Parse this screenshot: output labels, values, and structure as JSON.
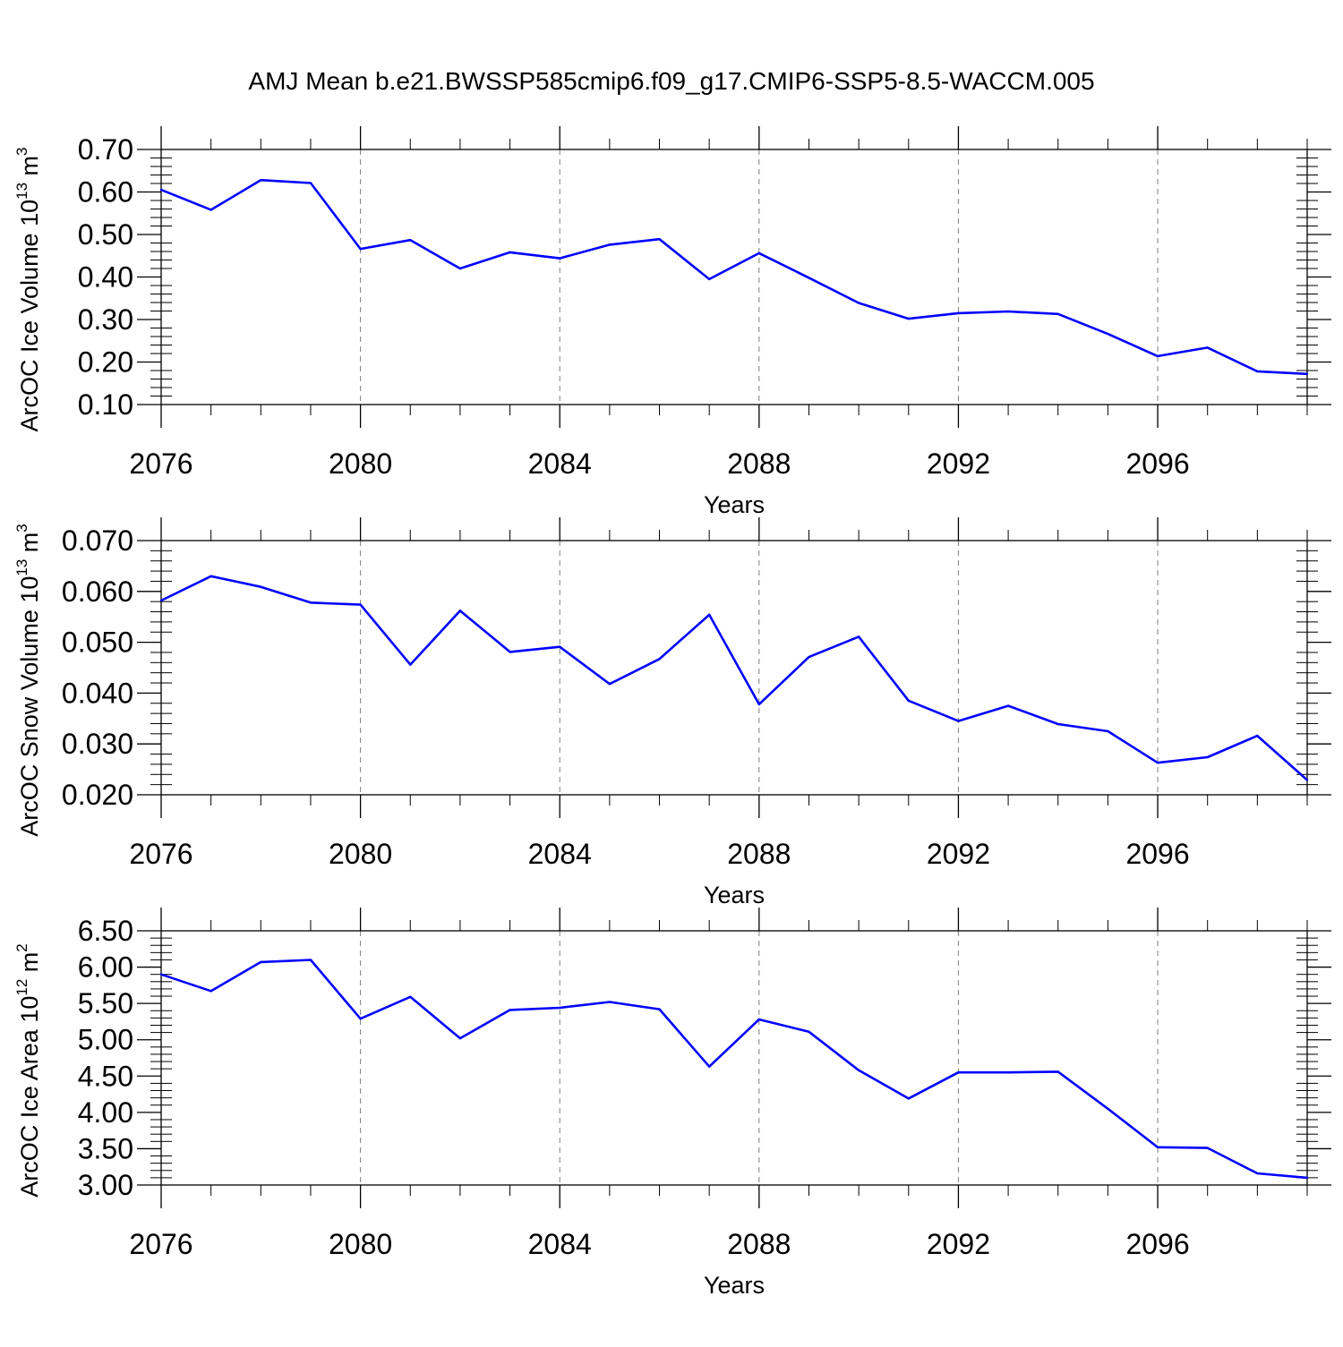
{
  "title": "AMJ Mean b.e21.BWSSP585cmip6.f09_g17.CMIP6-SSP5-8.5-WACCM.005",
  "colors": {
    "line": "#0000ff",
    "axis": "#000000",
    "grid": "#7f7f7f"
  },
  "chart_data": [
    {
      "type": "line",
      "ylabel": "ArcOC Ice Volume 10",
      "ylabel_exp": "13",
      "ylabel_unit": " m",
      "ylabel_unit_exp": "3",
      "xlabel": "Years",
      "xlim": [
        2076,
        2099
      ],
      "ylim": [
        0.1,
        0.7
      ],
      "yticks": [
        0.1,
        0.2,
        0.3,
        0.4,
        0.5,
        0.6,
        0.7
      ],
      "ytick_labels": [
        "0.10",
        "0.20",
        "0.30",
        "0.40",
        "0.50",
        "0.60",
        "0.70"
      ],
      "xticks": [
        2076,
        2080,
        2084,
        2088,
        2092,
        2096
      ],
      "xtick_labels": [
        "2076",
        "2080",
        "2084",
        "2088",
        "2092",
        "2096"
      ],
      "grid": "vertical dashed at major x ticks",
      "x": [
        2076,
        2077,
        2078,
        2079,
        2080,
        2081,
        2082,
        2083,
        2084,
        2085,
        2086,
        2087,
        2088,
        2089,
        2090,
        2091,
        2092,
        2093,
        2094,
        2095,
        2096,
        2097,
        2098,
        2099
      ],
      "values": [
        0.605,
        0.558,
        0.628,
        0.621,
        0.466,
        0.487,
        0.42,
        0.458,
        0.444,
        0.476,
        0.489,
        0.395,
        0.456,
        0.398,
        0.339,
        0.302,
        0.315,
        0.319,
        0.313,
        0.266,
        0.214,
        0.234,
        0.178,
        0.172
      ]
    },
    {
      "type": "line",
      "ylabel": "ArcOC Snow Volume 10",
      "ylabel_exp": "13",
      "ylabel_unit": " m",
      "ylabel_unit_exp": "3",
      "xlabel": "Years",
      "xlim": [
        2076,
        2099
      ],
      "ylim": [
        0.02,
        0.07
      ],
      "yticks": [
        0.02,
        0.03,
        0.04,
        0.05,
        0.06,
        0.07
      ],
      "ytick_labels": [
        "0.020",
        "0.030",
        "0.040",
        "0.050",
        "0.060",
        "0.070"
      ],
      "xticks": [
        2076,
        2080,
        2084,
        2088,
        2092,
        2096
      ],
      "xtick_labels": [
        "2076",
        "2080",
        "2084",
        "2088",
        "2092",
        "2096"
      ],
      "grid": "vertical dashed at major x ticks",
      "x": [
        2076,
        2077,
        2078,
        2079,
        2080,
        2081,
        2082,
        2083,
        2084,
        2085,
        2086,
        2087,
        2088,
        2089,
        2090,
        2091,
        2092,
        2093,
        2094,
        2095,
        2096,
        2097,
        2098,
        2099
      ],
      "values": [
        0.0582,
        0.063,
        0.0609,
        0.0578,
        0.0574,
        0.0456,
        0.0562,
        0.0481,
        0.0491,
        0.0418,
        0.0467,
        0.0554,
        0.0378,
        0.0471,
        0.0511,
        0.0385,
        0.0345,
        0.0375,
        0.0339,
        0.0325,
        0.0263,
        0.0274,
        0.0316,
        0.0229
      ]
    },
    {
      "type": "line",
      "ylabel": "ArcOC Ice Area 10",
      "ylabel_exp": "12",
      "ylabel_unit": " m",
      "ylabel_unit_exp": "2",
      "xlabel": "Years",
      "xlim": [
        2076,
        2099
      ],
      "ylim": [
        3.0,
        6.5
      ],
      "yticks": [
        3.0,
        3.5,
        4.0,
        4.5,
        5.0,
        5.5,
        6.0,
        6.5
      ],
      "ytick_labels": [
        "3.00",
        "3.50",
        "4.00",
        "4.50",
        "5.00",
        "5.50",
        "6.00",
        "6.50"
      ],
      "xticks": [
        2076,
        2080,
        2084,
        2088,
        2092,
        2096
      ],
      "xtick_labels": [
        "2076",
        "2080",
        "2084",
        "2088",
        "2092",
        "2096"
      ],
      "grid": "vertical dashed at major x ticks",
      "x": [
        2076,
        2077,
        2078,
        2079,
        2080,
        2081,
        2082,
        2083,
        2084,
        2085,
        2086,
        2087,
        2088,
        2089,
        2090,
        2091,
        2092,
        2093,
        2094,
        2095,
        2096,
        2097,
        2098,
        2099
      ],
      "values": [
        5.9,
        5.67,
        6.07,
        6.1,
        5.29,
        5.59,
        5.02,
        5.41,
        5.44,
        5.52,
        5.42,
        4.63,
        5.28,
        5.11,
        4.58,
        4.19,
        4.55,
        4.55,
        4.56,
        4.05,
        3.52,
        3.51,
        3.16,
        3.1
      ]
    }
  ]
}
